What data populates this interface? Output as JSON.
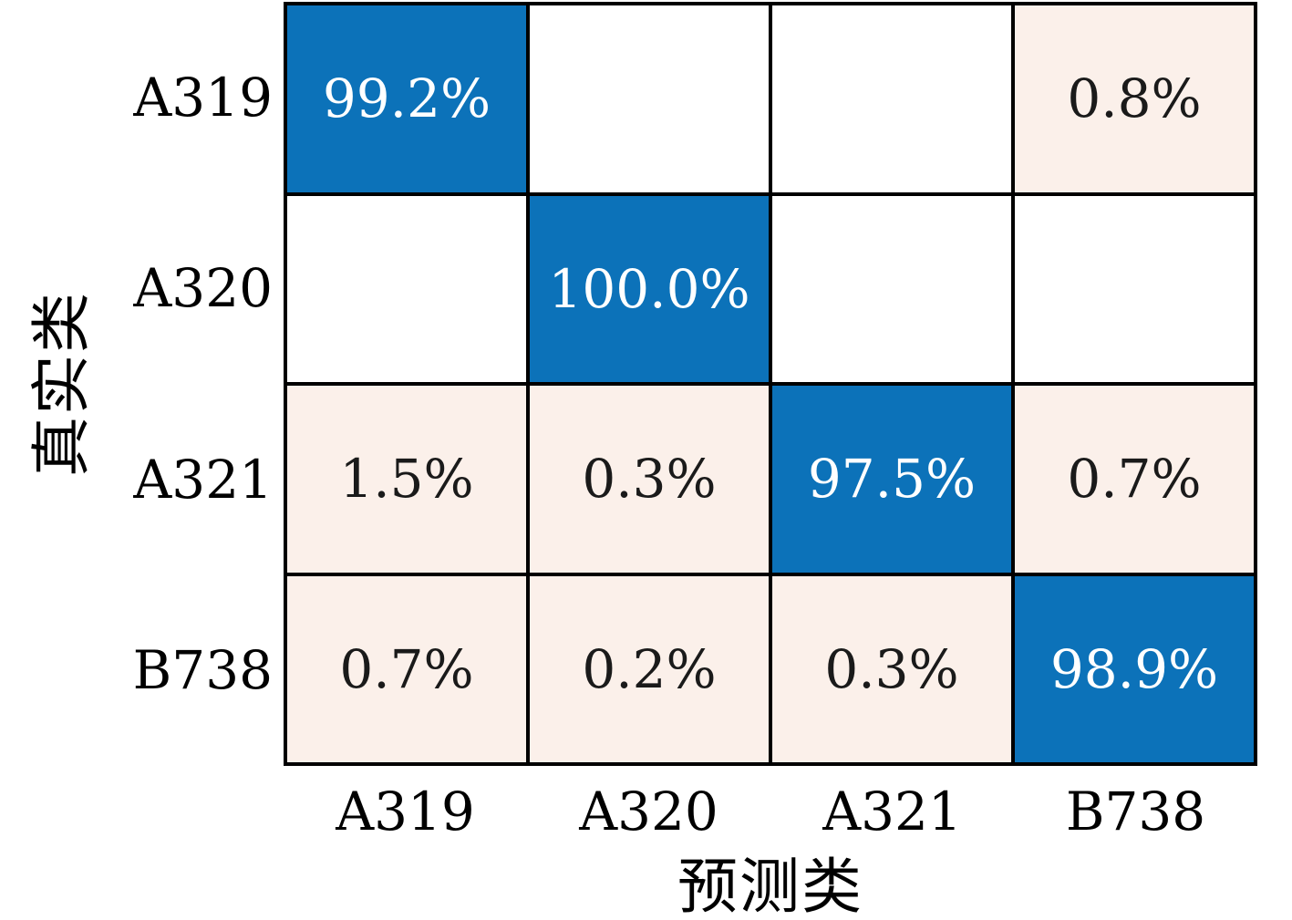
{
  "chart_data": {
    "type": "heatmap",
    "subtype": "confusion-matrix",
    "title": "",
    "xlabel": "预测类",
    "ylabel": "真实类",
    "classes": [
      "A319",
      "A320",
      "A321",
      "B738"
    ],
    "x_tick_labels": [
      "A319",
      "A320",
      "A321",
      "B738"
    ],
    "y_tick_labels": [
      "A319",
      "A320",
      "A321",
      "B738"
    ],
    "matrix_percent": [
      [
        99.2,
        null,
        null,
        0.8
      ],
      [
        null,
        100.0,
        null,
        null
      ],
      [
        1.5,
        0.3,
        97.5,
        0.7
      ],
      [
        0.7,
        0.2,
        0.3,
        98.9
      ]
    ],
    "cell_labels": [
      [
        "99.2%",
        "",
        "",
        "0.8%"
      ],
      [
        "",
        "100.0%",
        "",
        ""
      ],
      [
        "1.5%",
        "0.3%",
        "97.5%",
        "0.7%"
      ],
      [
        "0.7%",
        "0.2%",
        "0.3%",
        "98.9%"
      ]
    ],
    "layout": {
      "grid_rows": 4,
      "grid_cols": 4,
      "legend": "none",
      "gridlines": "black cell borders"
    },
    "colors": {
      "diagonal": "#0c72b9",
      "off_diagonal": "#fbf0ea",
      "zero_cell": "#ffffff",
      "grid_line": "#000000",
      "text_on_diagonal": "#ffffff",
      "text_on_off_diagonal": "#1a1a1a",
      "page_background": "#ffffff"
    }
  }
}
